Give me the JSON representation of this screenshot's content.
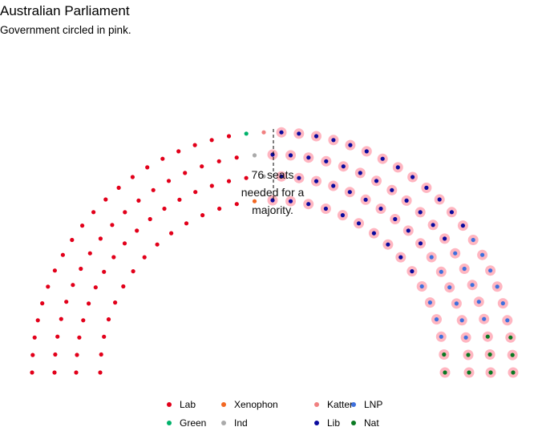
{
  "chart_data": {
    "type": "parliament",
    "title": "Australian Parliament",
    "subtitle": "Government circled in pink.",
    "annotation": [
      "76 seats",
      "needed for a",
      "majority."
    ],
    "total_seats": 150,
    "majority_threshold": 76,
    "highlight_color": "#FFB6C1",
    "parties": [
      {
        "name": "Lab",
        "seats": 69,
        "color": "#E2001A",
        "government": false
      },
      {
        "name": "Green",
        "seats": 1,
        "color": "#00B26B",
        "government": false
      },
      {
        "name": "Xenophon",
        "seats": 1,
        "color": "#F26722",
        "government": false
      },
      {
        "name": "Ind",
        "seats": 2,
        "color": "#AAAAAA",
        "government": false
      },
      {
        "name": "Katter",
        "seats": 1,
        "color": "#F08080",
        "government": false
      },
      {
        "name": "Lib",
        "seats": 45,
        "color": "#0A0A9E",
        "government": true
      },
      {
        "name": "LNP",
        "seats": 21,
        "color": "#3E70DD",
        "government": true
      },
      {
        "name": "Nat",
        "seats": 10,
        "color": "#0A7A22",
        "government": true
      }
    ],
    "legend": {
      "position": "bottom",
      "rows": [
        [
          "Lab",
          "Xenophon",
          "Katter",
          "LNP"
        ],
        [
          "Green",
          "Ind",
          "Lib",
          "Nat"
        ]
      ]
    }
  }
}
